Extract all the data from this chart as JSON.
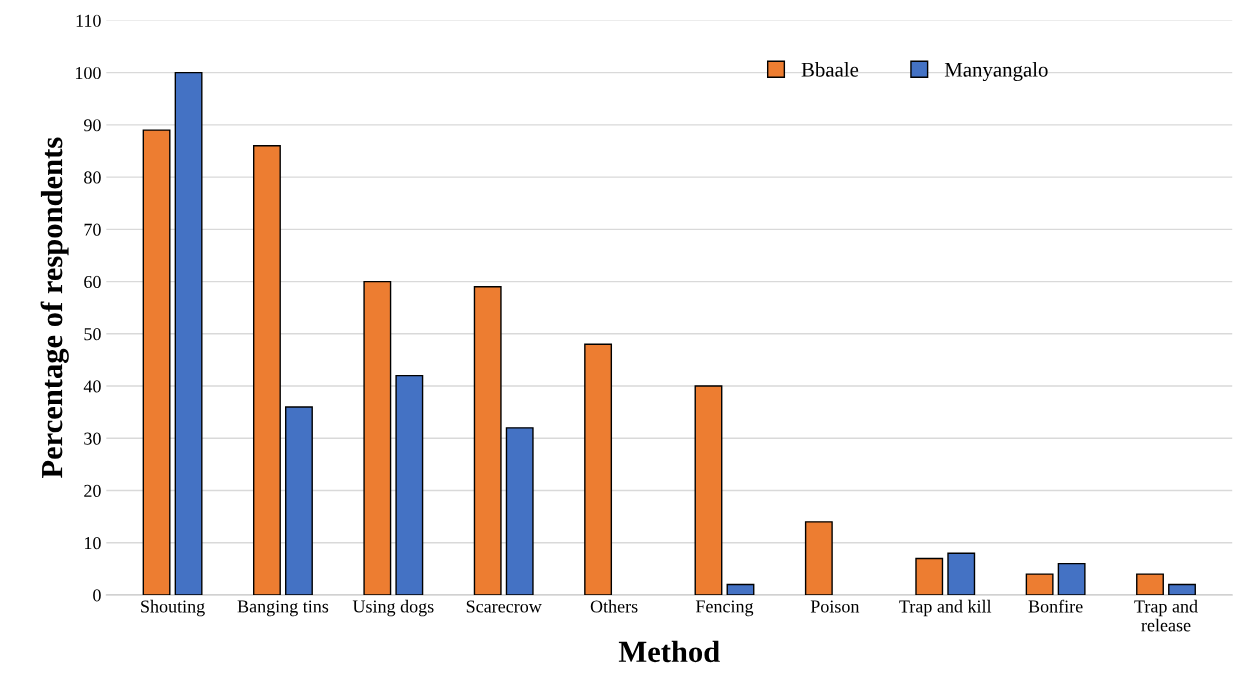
{
  "chart_data": {
    "type": "bar",
    "xlabel": "Method",
    "ylabel": "Percentage of respondents",
    "categories": [
      "Shouting",
      "Banging tins",
      "Using dogs",
      "Scarecrow",
      "Others",
      "Fencing",
      "Poison",
      "Trap and kill",
      "Bonfire",
      "Trap and\nrelease"
    ],
    "series": [
      {
        "name": "Bbaale",
        "color": "#ed7d31",
        "values": [
          89,
          86,
          60,
          59,
          48,
          40,
          14,
          7,
          4,
          4
        ]
      },
      {
        "name": "Manyangalo",
        "color": "#4472c4",
        "values": [
          100,
          36,
          42,
          32,
          null,
          2,
          null,
          8,
          6,
          2
        ]
      }
    ],
    "ylim": [
      0,
      110
    ],
    "yticks": [
      0,
      10,
      20,
      30,
      40,
      50,
      60,
      70,
      80,
      90,
      100,
      110
    ],
    "grid": "y",
    "legend": "top right"
  }
}
